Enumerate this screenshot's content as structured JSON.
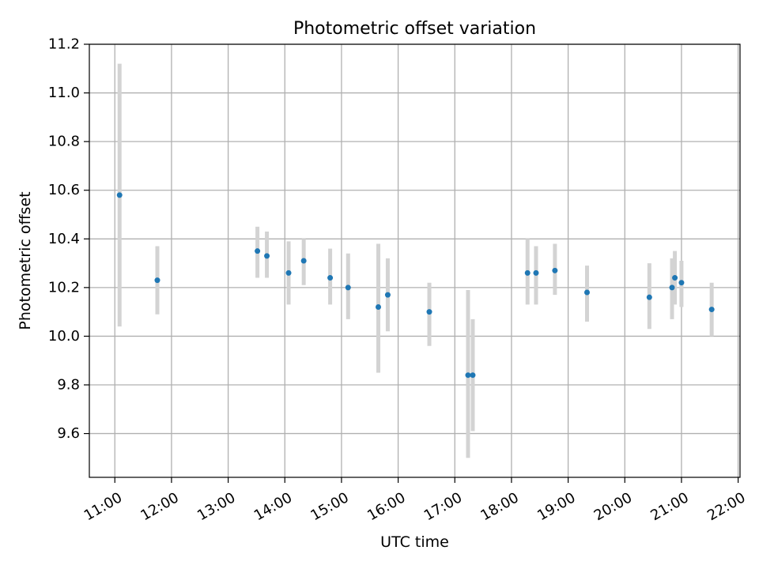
{
  "chart_data": {
    "type": "scatter",
    "title": "Photometric offset variation",
    "xlabel": "UTC time",
    "ylabel": "Photometric offset",
    "xlim": [
      "10:33",
      "22:02"
    ],
    "ylim": [
      9.42,
      11.2
    ],
    "x_ticks": [
      "11:00",
      "12:00",
      "13:00",
      "14:00",
      "15:00",
      "16:00",
      "17:00",
      "18:00",
      "19:00",
      "20:00",
      "21:00",
      "22:00"
    ],
    "y_ticks": [
      "9.6",
      "9.8",
      "10.0",
      "10.2",
      "10.4",
      "10.6",
      "10.8",
      "11.0",
      "11.2"
    ],
    "grid": true,
    "series": [
      {
        "marker_color": "#1f77b4",
        "errorbar_color": "#d3d3d3",
        "points": [
          {
            "x": "11:05",
            "y": 10.58,
            "ylow": 10.04,
            "yhigh": 11.12
          },
          {
            "x": "11:45",
            "y": 10.23,
            "ylow": 10.09,
            "yhigh": 10.37
          },
          {
            "x": "13:31",
            "y": 10.35,
            "ylow": 10.24,
            "yhigh": 10.45
          },
          {
            "x": "13:41",
            "y": 10.33,
            "ylow": 10.24,
            "yhigh": 10.43
          },
          {
            "x": "14:04",
            "y": 10.26,
            "ylow": 10.13,
            "yhigh": 10.39
          },
          {
            "x": "14:20",
            "y": 10.31,
            "ylow": 10.21,
            "yhigh": 10.4
          },
          {
            "x": "14:48",
            "y": 10.24,
            "ylow": 10.13,
            "yhigh": 10.36
          },
          {
            "x": "15:07",
            "y": 10.2,
            "ylow": 10.07,
            "yhigh": 10.34
          },
          {
            "x": "15:39",
            "y": 10.12,
            "ylow": 9.85,
            "yhigh": 10.38
          },
          {
            "x": "15:49",
            "y": 10.17,
            "ylow": 10.02,
            "yhigh": 10.32
          },
          {
            "x": "16:33",
            "y": 10.1,
            "ylow": 9.96,
            "yhigh": 10.22
          },
          {
            "x": "17:14",
            "y": 9.84,
            "ylow": 9.5,
            "yhigh": 10.19
          },
          {
            "x": "17:19",
            "y": 9.84,
            "ylow": 9.61,
            "yhigh": 10.07
          },
          {
            "x": "18:17",
            "y": 10.26,
            "ylow": 10.13,
            "yhigh": 10.4
          },
          {
            "x": "18:26",
            "y": 10.26,
            "ylow": 10.13,
            "yhigh": 10.37
          },
          {
            "x": "18:46",
            "y": 10.27,
            "ylow": 10.17,
            "yhigh": 10.38
          },
          {
            "x": "19:20",
            "y": 10.18,
            "ylow": 10.06,
            "yhigh": 10.29
          },
          {
            "x": "20:26",
            "y": 10.16,
            "ylow": 10.03,
            "yhigh": 10.3
          },
          {
            "x": "20:50",
            "y": 10.2,
            "ylow": 10.07,
            "yhigh": 10.32
          },
          {
            "x": "20:53",
            "y": 10.24,
            "ylow": 10.13,
            "yhigh": 10.35
          },
          {
            "x": "21:00",
            "y": 10.22,
            "ylow": 10.12,
            "yhigh": 10.31
          },
          {
            "x": "21:32",
            "y": 10.11,
            "ylow": 10.0,
            "yhigh": 10.22
          }
        ]
      }
    ]
  }
}
